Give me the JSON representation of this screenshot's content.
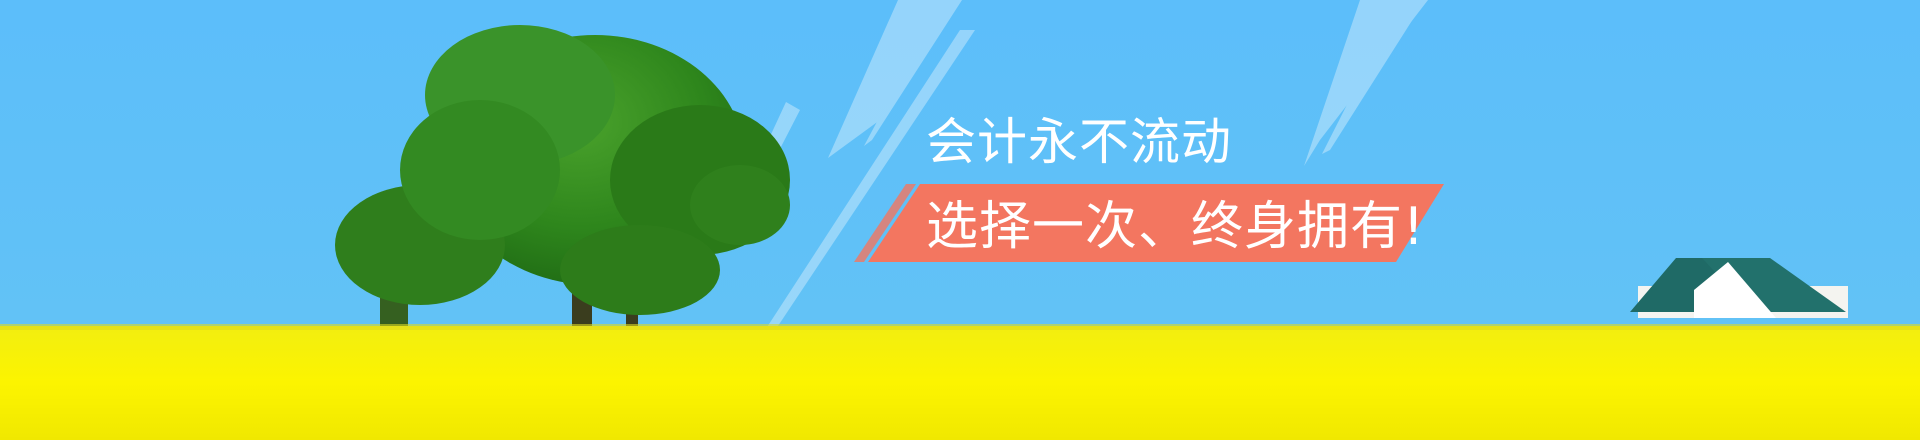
{
  "banner": {
    "headline": "会计永不流动",
    "tagline": "选择一次、终身拥有!"
  },
  "colors": {
    "sky": "#5bbdf9",
    "field": "#fcf200",
    "tagline_ribbon": "#f37660",
    "tree": "#2f8a1e",
    "house_roof": "#1f6a66",
    "house_wall": "#ffffff",
    "text": "#ffffff"
  }
}
